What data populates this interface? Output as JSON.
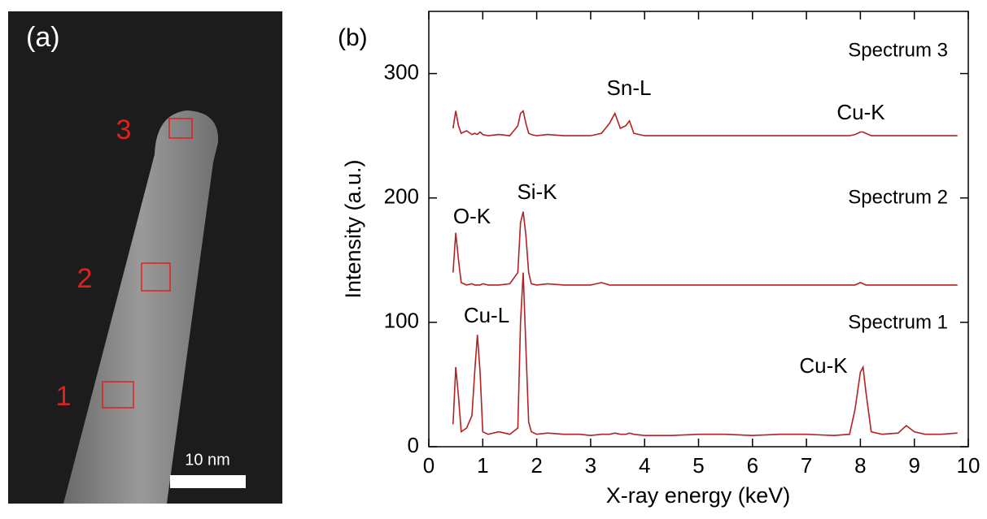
{
  "panel_a": {
    "label": "(a)",
    "regions": [
      "1",
      "2",
      "3"
    ],
    "scale_bar": "10 nm"
  },
  "chart_data": {
    "type": "line",
    "panel_label": "(b)",
    "x_label": "X-ray energy (keV)",
    "y_label": "Intensity (a.u.)",
    "xlim": [
      0,
      10
    ],
    "xticks": [
      0,
      1,
      2,
      3,
      4,
      5,
      6,
      7,
      8,
      9,
      10
    ],
    "ylim": [
      0,
      350
    ],
    "yticks": [
      0,
      100,
      200,
      300
    ],
    "x": [
      0.45,
      0.5,
      0.55,
      0.6,
      0.7,
      0.8,
      0.85,
      0.9,
      0.95,
      1.0,
      1.1,
      1.3,
      1.5,
      1.65,
      1.7,
      1.75,
      1.8,
      1.85,
      1.9,
      2.0,
      2.2,
      2.5,
      2.8,
      3.0,
      3.2,
      3.35,
      3.45,
      3.55,
      3.65,
      3.72,
      3.8,
      4.0,
      4.5,
      5.0,
      5.5,
      6.0,
      6.5,
      7.0,
      7.5,
      7.8,
      7.9,
      8.0,
      8.05,
      8.1,
      8.2,
      8.4,
      8.7,
      8.85,
      9.0,
      9.2,
      9.5,
      9.8
    ],
    "series": [
      {
        "name": "Spectrum 1",
        "color": "#b22222",
        "values": [
          18,
          64,
          40,
          12,
          15,
          25,
          60,
          90,
          60,
          12,
          10,
          12,
          10,
          15,
          100,
          140,
          80,
          20,
          12,
          10,
          11,
          10,
          10,
          9,
          10,
          10,
          11,
          10,
          10,
          11,
          10,
          9,
          9,
          10,
          10,
          9,
          10,
          10,
          9,
          10,
          30,
          60,
          64,
          45,
          12,
          10,
          11,
          17,
          12,
          10,
          10,
          11
        ]
      },
      {
        "name": "Spectrum 2",
        "color": "#b22222",
        "values": [
          140,
          172,
          150,
          132,
          130,
          131,
          130,
          130,
          130,
          131,
          130,
          130,
          131,
          140,
          180,
          189,
          170,
          140,
          131,
          130,
          131,
          130,
          130,
          130,
          132,
          130,
          130,
          130,
          130,
          130,
          130,
          130,
          130,
          130,
          130,
          130,
          130,
          130,
          130,
          130,
          130,
          132,
          131,
          130,
          130,
          130,
          130,
          130,
          130,
          130,
          130,
          130
        ]
      },
      {
        "name": "Spectrum 3",
        "color": "#b22222",
        "values": [
          256,
          270,
          258,
          252,
          254,
          251,
          252,
          251,
          253,
          251,
          250,
          251,
          250,
          258,
          268,
          270,
          260,
          252,
          251,
          250,
          251,
          250,
          250,
          250,
          252,
          260,
          268,
          256,
          258,
          262,
          252,
          250,
          250,
          250,
          250,
          250,
          250,
          250,
          250,
          250,
          251,
          253,
          253,
          252,
          250,
          250,
          250,
          250,
          250,
          250,
          250,
          250
        ]
      }
    ],
    "annotations": [
      "Sn-L",
      "Cu-K",
      "O-K",
      "Si-K",
      "Cu-L",
      "Cu-K"
    ]
  }
}
